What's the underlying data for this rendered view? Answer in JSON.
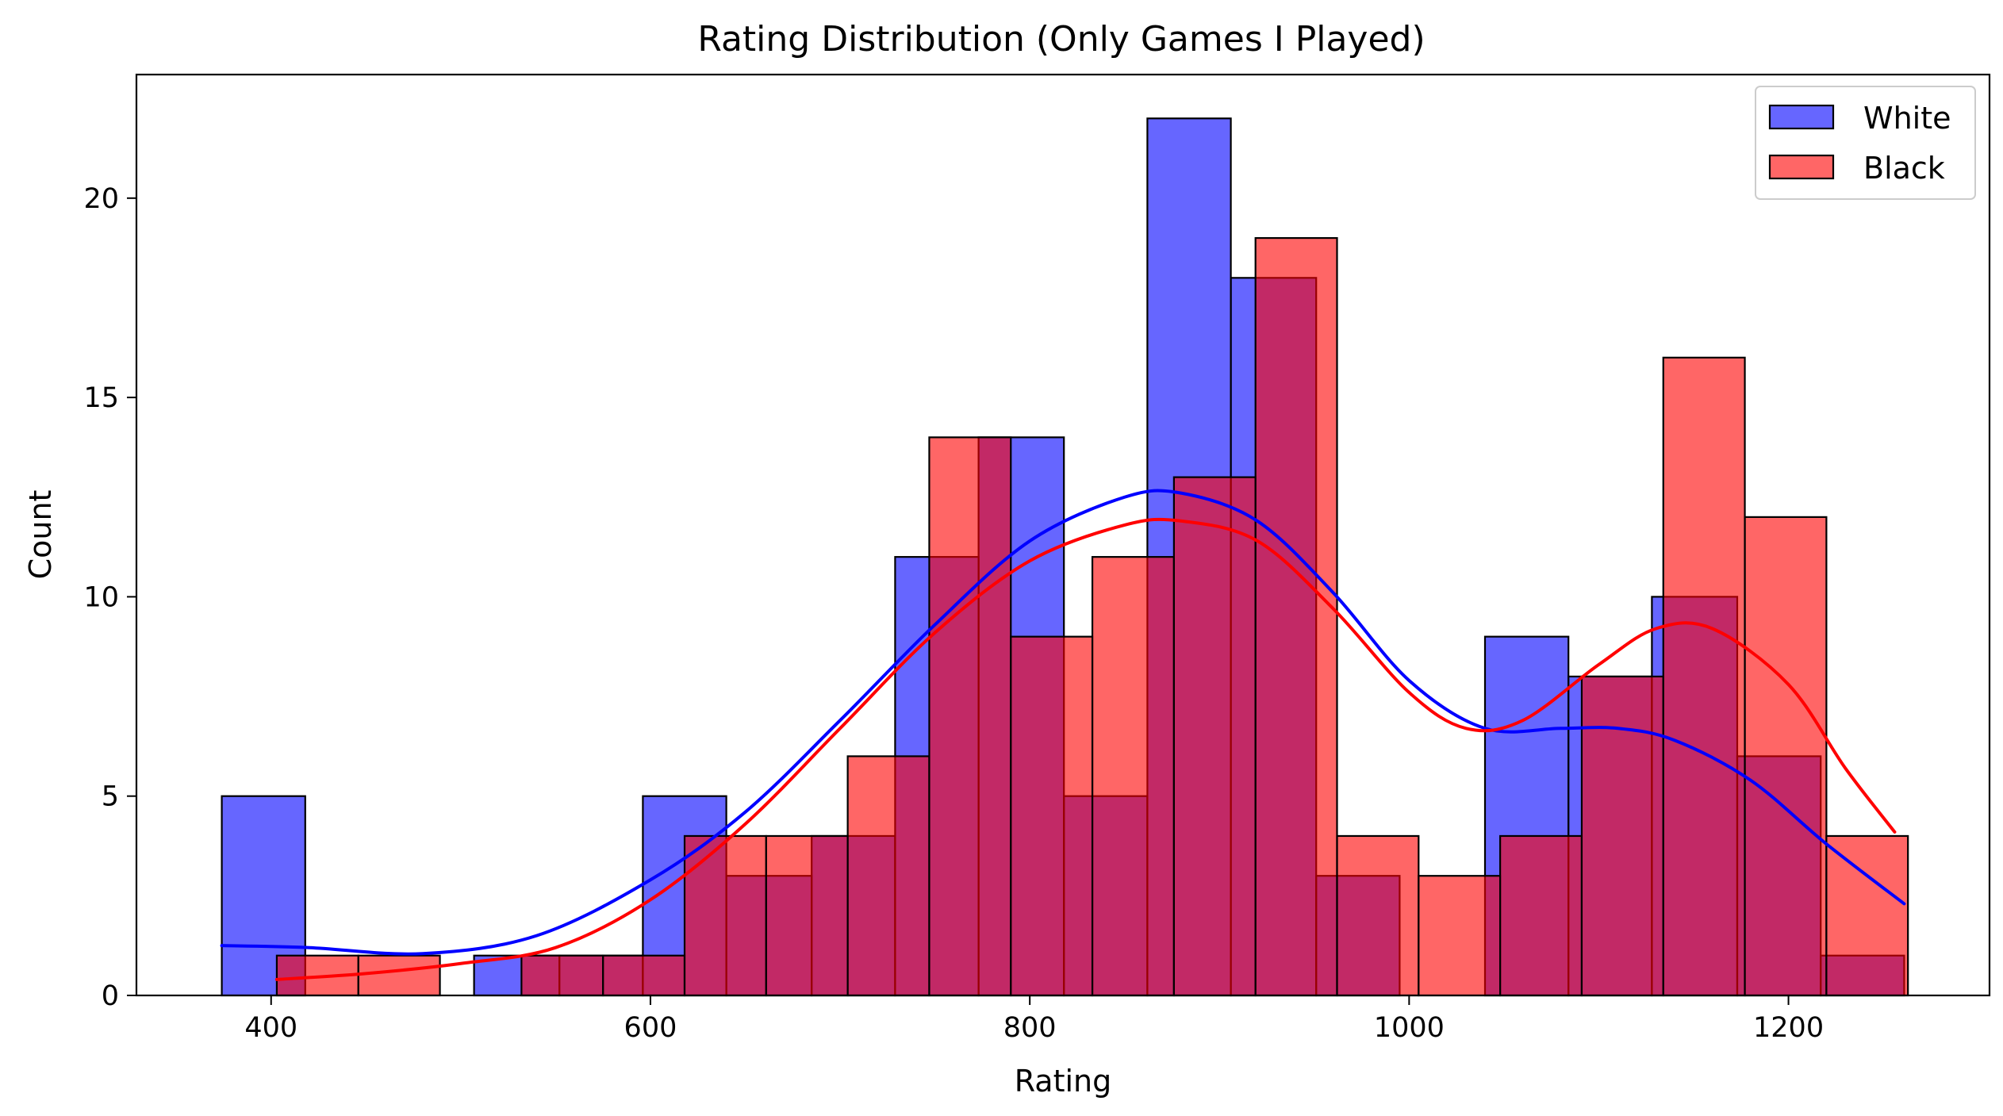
{
  "chart_data": {
    "type": "histogram",
    "title": "Rating Distribution (Only Games I Played)",
    "xlabel": "Rating",
    "ylabel": "Count",
    "xlim": [
      329,
      1306
    ],
    "ylim": [
      0,
      23.1
    ],
    "xticks": [
      400,
      600,
      800,
      1000,
      1200
    ],
    "yticks": [
      0,
      5,
      10,
      15,
      20
    ],
    "legend_position": "top-right",
    "grid": false,
    "series": [
      {
        "name": "White",
        "color": "#0000ff",
        "bar_opacity": 0.6,
        "bins": [
          {
            "x0": 374,
            "x1": 418,
            "count": 5
          },
          {
            "x0": 418,
            "x1": 463,
            "count": 0
          },
          {
            "x0": 463,
            "x1": 507,
            "count": 0
          },
          {
            "x0": 507,
            "x1": 552,
            "count": 1
          },
          {
            "x0": 552,
            "x1": 596,
            "count": 1
          },
          {
            "x0": 596,
            "x1": 640,
            "count": 5
          },
          {
            "x0": 640,
            "x1": 685,
            "count": 3
          },
          {
            "x0": 685,
            "x1": 729,
            "count": 4
          },
          {
            "x0": 729,
            "x1": 773,
            "count": 11
          },
          {
            "x0": 773,
            "x1": 818,
            "count": 14
          },
          {
            "x0": 818,
            "x1": 862,
            "count": 5
          },
          {
            "x0": 862,
            "x1": 906,
            "count": 22
          },
          {
            "x0": 906,
            "x1": 951,
            "count": 18
          },
          {
            "x0": 951,
            "x1": 995,
            "count": 3
          },
          {
            "x0": 995,
            "x1": 1040,
            "count": 0
          },
          {
            "x0": 1040,
            "x1": 1084,
            "count": 9
          },
          {
            "x0": 1084,
            "x1": 1128,
            "count": 8
          },
          {
            "x0": 1128,
            "x1": 1173,
            "count": 10
          },
          {
            "x0": 1173,
            "x1": 1217,
            "count": 6
          },
          {
            "x0": 1217,
            "x1": 1261,
            "count": 1
          }
        ],
        "kde": {
          "x": [
            374,
            420,
            480,
            540,
            600,
            650,
            700,
            750,
            800,
            850,
            880,
            920,
            960,
            1000,
            1040,
            1080,
            1110,
            1140,
            1180,
            1220,
            1261
          ],
          "y": [
            1.25,
            1.2,
            1.05,
            1.5,
            2.9,
            4.6,
            6.9,
            9.3,
            11.4,
            12.5,
            12.6,
            11.9,
            10.1,
            7.9,
            6.7,
            6.7,
            6.7,
            6.4,
            5.4,
            3.8,
            2.3
          ]
        }
      },
      {
        "name": "Black",
        "color": "#ff0000",
        "bar_opacity": 0.6,
        "bins": [
          {
            "x0": 403,
            "x1": 446,
            "count": 1
          },
          {
            "x0": 446,
            "x1": 489,
            "count": 1
          },
          {
            "x0": 489,
            "x1": 532,
            "count": 0
          },
          {
            "x0": 532,
            "x1": 575,
            "count": 1
          },
          {
            "x0": 575,
            "x1": 618,
            "count": 1
          },
          {
            "x0": 618,
            "x1": 661,
            "count": 4
          },
          {
            "x0": 661,
            "x1": 704,
            "count": 4
          },
          {
            "x0": 704,
            "x1": 747,
            "count": 6
          },
          {
            "x0": 747,
            "x1": 790,
            "count": 14
          },
          {
            "x0": 790,
            "x1": 833,
            "count": 9
          },
          {
            "x0": 833,
            "x1": 876,
            "count": 11
          },
          {
            "x0": 876,
            "x1": 919,
            "count": 13
          },
          {
            "x0": 919,
            "x1": 962,
            "count": 19
          },
          {
            "x0": 962,
            "x1": 1005,
            "count": 4
          },
          {
            "x0": 1005,
            "x1": 1048,
            "count": 3
          },
          {
            "x0": 1048,
            "x1": 1091,
            "count": 4
          },
          {
            "x0": 1091,
            "x1": 1134,
            "count": 8
          },
          {
            "x0": 1134,
            "x1": 1177,
            "count": 16
          },
          {
            "x0": 1177,
            "x1": 1220,
            "count": 12
          },
          {
            "x0": 1220,
            "x1": 1263,
            "count": 4
          }
        ],
        "kde": {
          "x": [
            403,
            450,
            500,
            550,
            600,
            650,
            700,
            750,
            800,
            850,
            880,
            920,
            960,
            1000,
            1030,
            1060,
            1100,
            1130,
            1160,
            1200,
            1230,
            1256
          ],
          "y": [
            0.4,
            0.55,
            0.8,
            1.2,
            2.4,
            4.3,
            6.7,
            9.1,
            10.9,
            11.8,
            11.9,
            11.4,
            9.7,
            7.6,
            6.7,
            6.9,
            8.3,
            9.2,
            9.2,
            7.8,
            5.7,
            4.1
          ]
        }
      }
    ]
  }
}
